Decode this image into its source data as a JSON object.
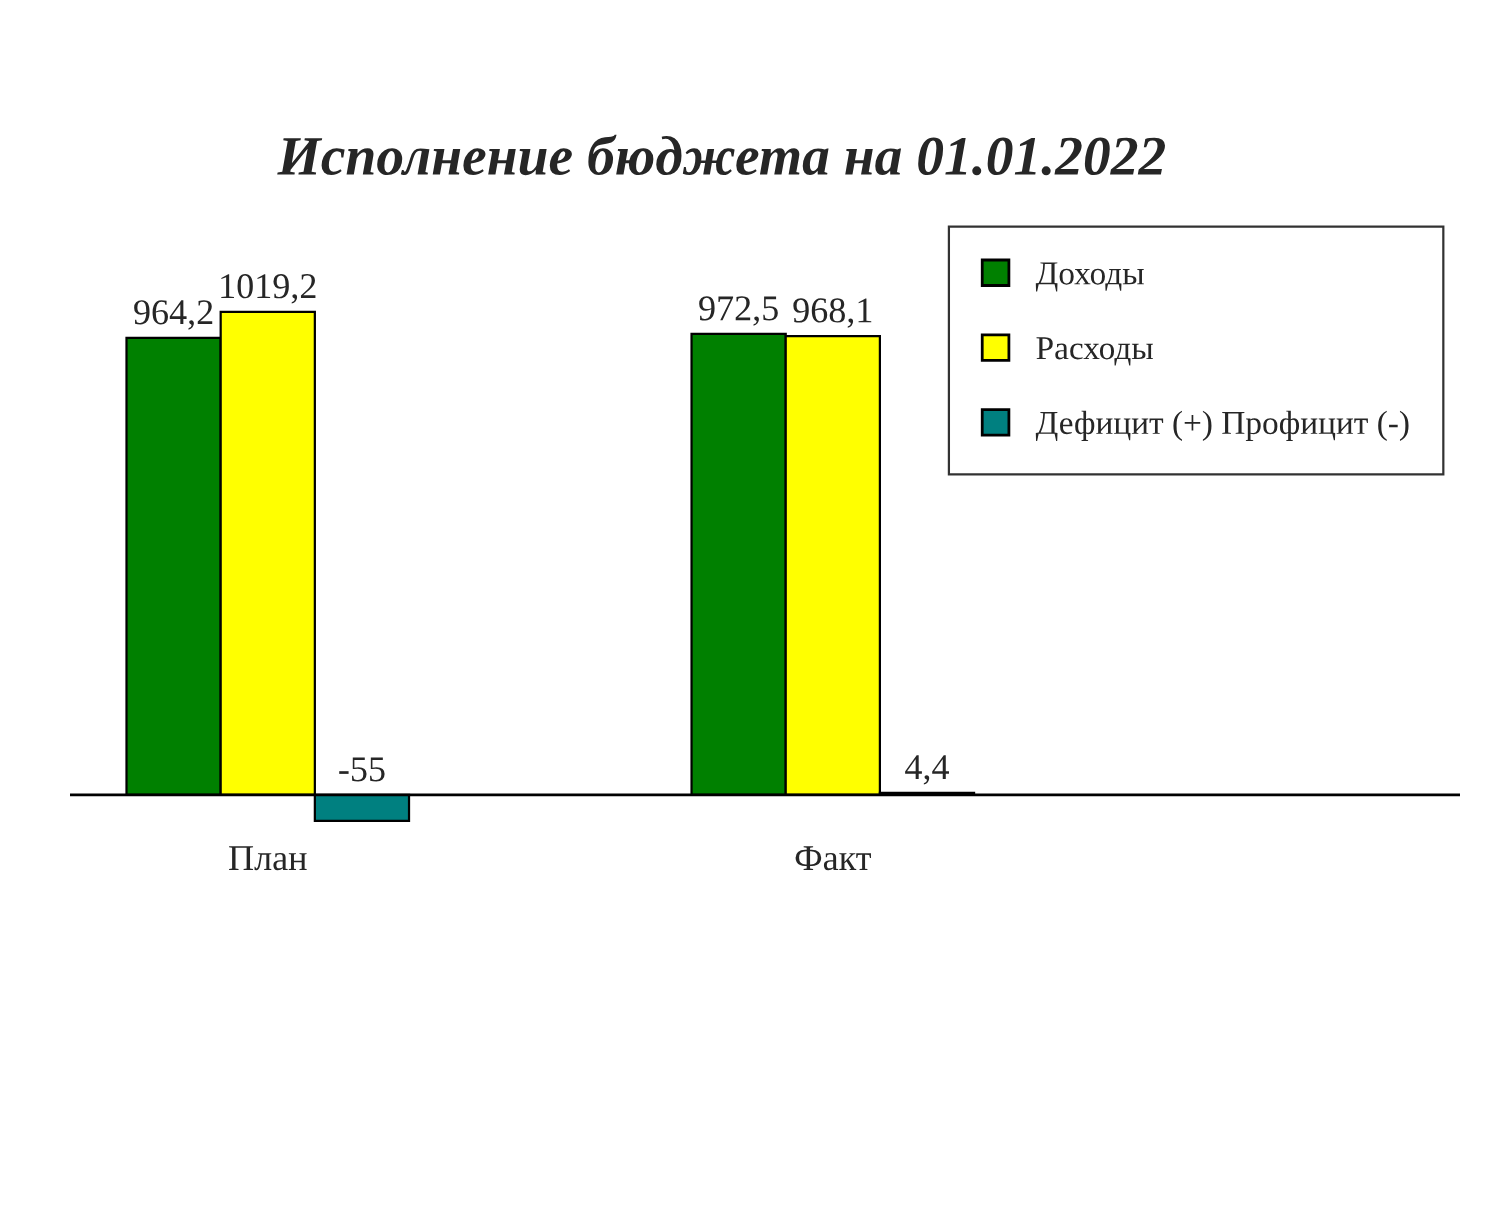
{
  "chart_data": {
    "type": "bar",
    "title": "Исполнение бюджета на 01.01.2022",
    "categories": [
      "План",
      "Факт"
    ],
    "series": [
      {
        "name": "Доходы",
        "color": "#008000",
        "values": [
          964.2,
          972.5
        ],
        "value_labels": [
          "964,2",
          "972,5"
        ]
      },
      {
        "name": "Расходы",
        "color": "#ffff00",
        "values": [
          1019.2,
          968.1
        ],
        "value_labels": [
          "1019,2",
          "968,1"
        ]
      },
      {
        "name": "Дефицит (+) Профицит (-)",
        "color": "#008080",
        "values": [
          -55,
          4.4
        ],
        "value_labels": [
          "-55",
          "4,4"
        ]
      }
    ],
    "legend": "top right"
  }
}
